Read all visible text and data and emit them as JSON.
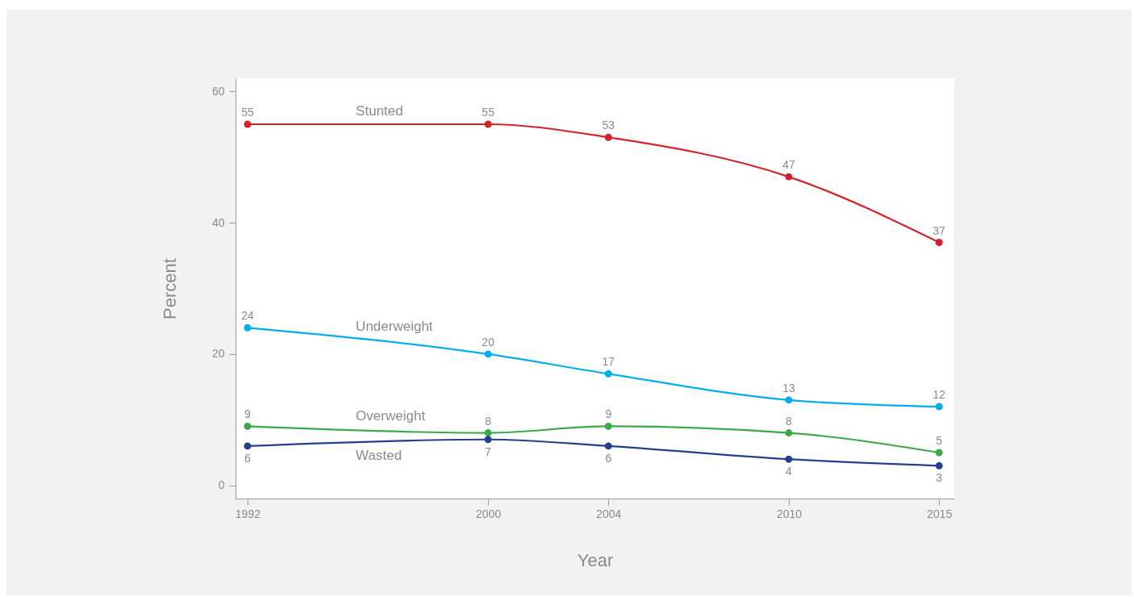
{
  "chart_data": {
    "type": "line",
    "xlabel": "Year",
    "ylabel": "Percent",
    "x": [
      1992,
      2000,
      2004,
      2010,
      2015
    ],
    "series": [
      {
        "name": "Stunted",
        "color": "#d7202a",
        "values": [
          55,
          55,
          53,
          47,
          37
        ]
      },
      {
        "name": "Underweight",
        "color": "#00aeef",
        "values": [
          24,
          20,
          17,
          13,
          12
        ]
      },
      {
        "name": "Overweight",
        "color": "#3aaa48",
        "values": [
          9,
          8,
          9,
          8,
          5
        ]
      },
      {
        "name": "Wasted",
        "color": "#233f8f",
        "values": [
          6,
          7,
          6,
          4,
          3
        ]
      }
    ],
    "xlim": [
      1991.6,
      2015.5
    ],
    "ylim": [
      -2,
      62
    ],
    "xticks": [
      1992,
      2000,
      2004,
      2010,
      2015
    ],
    "yticks": [
      0,
      20,
      40,
      60
    ],
    "data_labels": true,
    "marker": "circle"
  }
}
